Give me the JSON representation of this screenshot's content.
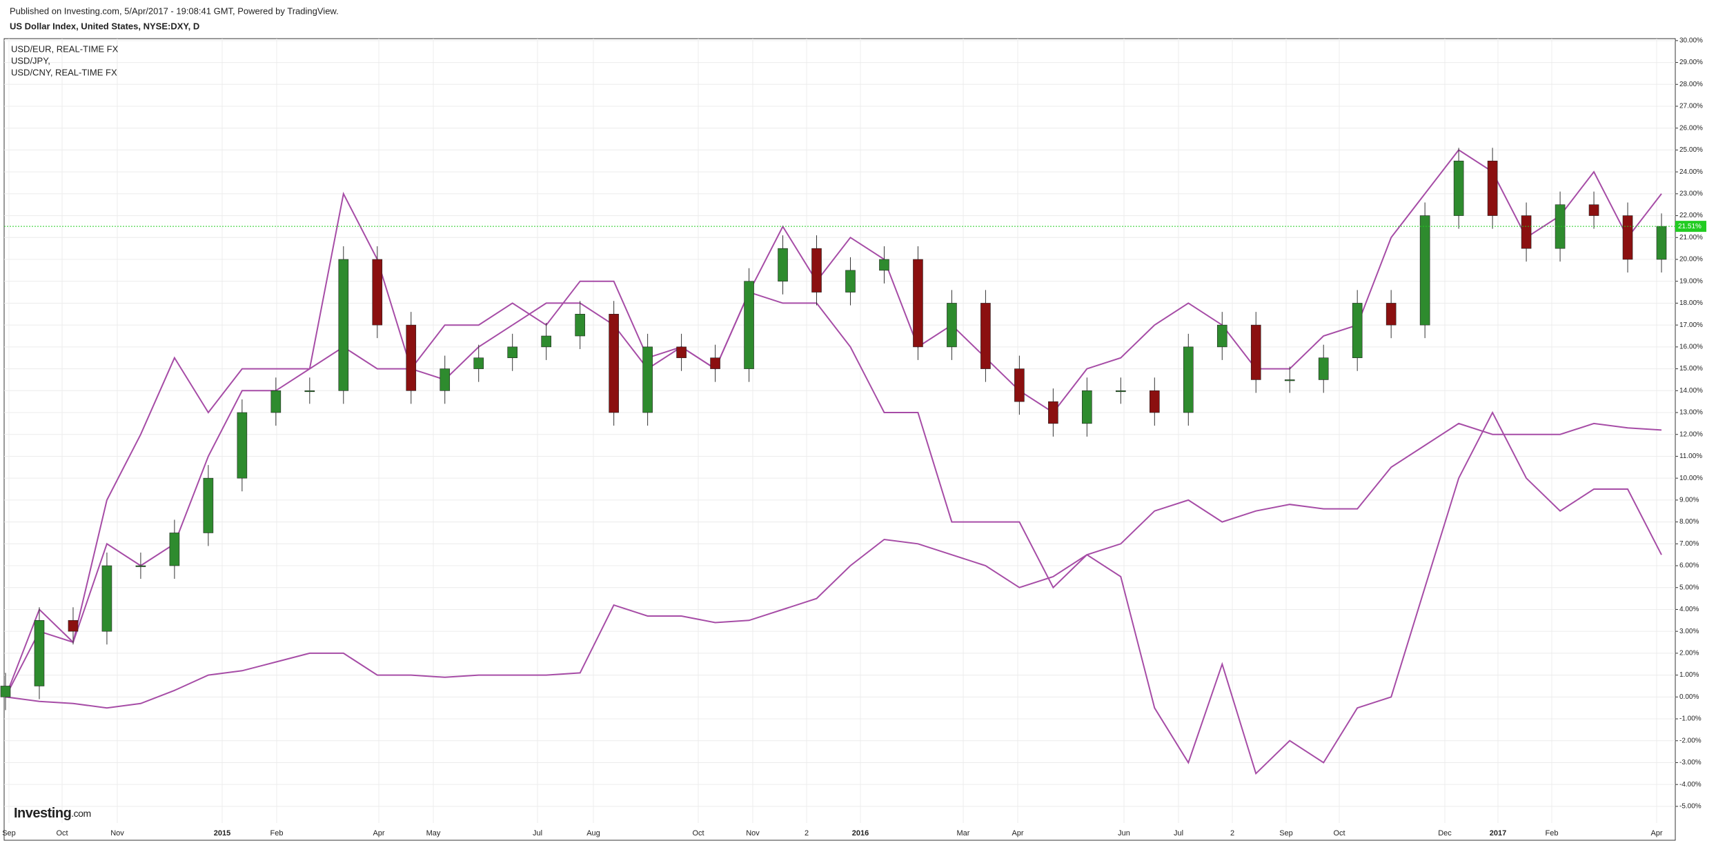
{
  "header": {
    "published": "Published on Investing.com, 5/Apr/2017 - 19:08:41 GMT, Powered by TradingView.",
    "title": "US Dollar Index, United States, NYSE:DXY, D"
  },
  "logo": {
    "name": "Investing",
    "suffix": ".com"
  },
  "chart_data": {
    "type": "candlestick",
    "xtick_labels": [
      "Sep",
      "Oct",
      "Nov",
      "2015",
      "Feb",
      "Apr",
      "May",
      "Jul",
      "Aug",
      "Oct",
      "Nov",
      "2",
      "2016",
      "Mar",
      "Apr",
      "Jun",
      "Jul",
      "2",
      "Sep",
      "Oct",
      "Dec",
      "2017",
      "Feb",
      "Apr"
    ],
    "candles": {
      "up_color": "#2e8b2e",
      "down_color": "#8b1010",
      "open": [
        0,
        0.5,
        3.5,
        3,
        6,
        6,
        7.5,
        10,
        13,
        14,
        14,
        20,
        17,
        14,
        15,
        15.5,
        16,
        16.5,
        17.5,
        13,
        16,
        15.5,
        15,
        19,
        20.5,
        18.5,
        19.5,
        20,
        16,
        18,
        15,
        13.5,
        12.5,
        14,
        14,
        13,
        16,
        17,
        14.5,
        14.5,
        15.5,
        18,
        17,
        22,
        24.5,
        22,
        20.5,
        22.5,
        22,
        20
      ],
      "high": [
        1.1,
        4.1,
        4.1,
        6.6,
        6.6,
        8.1,
        10.6,
        13.6,
        14.6,
        14.6,
        20.6,
        20.6,
        17.6,
        15.6,
        16.1,
        16.6,
        17.1,
        18.1,
        18.1,
        16.6,
        16.6,
        16.1,
        19.6,
        21.1,
        21.1,
        20.1,
        20.6,
        20.6,
        18.6,
        18.6,
        15.6,
        14.1,
        14.6,
        14.6,
        14.6,
        16.6,
        17.6,
        17.6,
        15.1,
        16.1,
        18.6,
        18.6,
        22.6,
        25.1,
        25.1,
        22.6,
        23.1,
        23.1,
        22.6,
        22.1
      ],
      "low": [
        -0.6,
        -0.1,
        2.4,
        2.4,
        5.4,
        5.4,
        6.9,
        9.4,
        12.4,
        13.4,
        13.4,
        16.4,
        13.4,
        13.4,
        14.4,
        14.9,
        15.4,
        15.9,
        12.4,
        12.4,
        14.9,
        14.4,
        14.4,
        18.4,
        17.9,
        17.9,
        18.9,
        15.4,
        15.4,
        14.4,
        12.9,
        11.9,
        11.9,
        13.4,
        12.4,
        12.4,
        15.4,
        13.9,
        13.9,
        13.9,
        14.9,
        16.4,
        16.4,
        21.4,
        21.4,
        19.9,
        19.9,
        21.4,
        19.4,
        19.4
      ],
      "close": [
        0.5,
        3.5,
        3,
        6,
        6,
        7.5,
        10,
        13,
        14,
        14,
        20,
        17,
        14,
        15,
        15.5,
        16,
        16.5,
        17.5,
        13,
        16,
        15.5,
        15,
        19,
        20.5,
        18.5,
        19.5,
        20,
        16,
        18,
        15,
        13.5,
        12.5,
        14,
        14,
        13,
        16,
        17,
        14.5,
        14.5,
        15.5,
        18,
        17,
        22,
        24.5,
        22,
        20.5,
        22.5,
        22,
        20,
        21.51
      ]
    },
    "last_value": {
      "value": 21.51,
      "label": "21.51%",
      "color": "#22cc22"
    },
    "series": [
      {
        "name": "USD/EUR, REAL-TIME FX",
        "color": "#a64ca6",
        "values": [
          0,
          4,
          2.5,
          7,
          6,
          7,
          11,
          14,
          14,
          15,
          23,
          20,
          15,
          17,
          17,
          18,
          17,
          19,
          19,
          15.5,
          16,
          15,
          18.5,
          21.5,
          19,
          21,
          20,
          16,
          17,
          15.5,
          14,
          13,
          15,
          15.5,
          17,
          18,
          17,
          15,
          15,
          16.5,
          17,
          21,
          23,
          25,
          24,
          21,
          22,
          24,
          21,
          23
        ]
      },
      {
        "name": "USD/JPY,",
        "color": "#a64ca6",
        "values": [
          0,
          3,
          2.5,
          9,
          12,
          15.5,
          13,
          15,
          15,
          15,
          16,
          15,
          15,
          14.5,
          16,
          17,
          18,
          18,
          17,
          15,
          16,
          15,
          18.5,
          18,
          18,
          16,
          13,
          13,
          8,
          8,
          8,
          5,
          6.5,
          5.5,
          -0.5,
          -3,
          1.5,
          -3.5,
          -2,
          -3,
          -0.5,
          0,
          5,
          10,
          13,
          10,
          8.5,
          9.5,
          9.5,
          6.5
        ]
      },
      {
        "name": "USD/CNY, REAL-TIME FX",
        "color": "#a64ca6",
        "values": [
          0,
          -0.2,
          -0.3,
          -0.5,
          -0.3,
          0.3,
          1,
          1.2,
          1.6,
          2,
          2,
          1,
          1,
          0.9,
          1,
          1,
          1,
          1.1,
          4.2,
          3.7,
          3.7,
          3.4,
          3.5,
          4,
          4.5,
          6,
          7.2,
          7,
          6.5,
          6,
          5,
          5.5,
          6.5,
          7,
          8.5,
          9,
          8,
          8.5,
          8.8,
          8.6,
          8.6,
          10.5,
          11.5,
          12.5,
          12,
          12,
          12,
          12.5,
          12.3,
          12.2
        ]
      }
    ],
    "ylim": [
      -5.76,
      30.09
    ],
    "yticks": [
      {
        "value": 30,
        "label": "30.00%"
      },
      {
        "value": 29,
        "label": "29.00%"
      },
      {
        "value": 28,
        "label": "28.00%"
      },
      {
        "value": 27,
        "label": "27.00%"
      },
      {
        "value": 26,
        "label": "26.00%"
      },
      {
        "value": 25,
        "label": "25.00%"
      },
      {
        "value": 24,
        "label": "24.00%"
      },
      {
        "value": 23,
        "label": "23.00%"
      },
      {
        "value": 22,
        "label": "22.00%"
      },
      {
        "value": 21,
        "label": "21.00%"
      },
      {
        "value": 20,
        "label": "20.00%"
      },
      {
        "value": 19,
        "label": "19.00%"
      },
      {
        "value": 18,
        "label": "18.00%"
      },
      {
        "value": 17,
        "label": "17.00%"
      },
      {
        "value": 16,
        "label": "16.00%"
      },
      {
        "value": 15,
        "label": "15.00%"
      },
      {
        "value": 14,
        "label": "14.00%"
      },
      {
        "value": 13,
        "label": "13.00%"
      },
      {
        "value": 12,
        "label": "12.00%"
      },
      {
        "value": 11,
        "label": "11.00%"
      },
      {
        "value": 10,
        "label": "10.00%"
      },
      {
        "value": 9,
        "label": "9.00%"
      },
      {
        "value": 8,
        "label": "8.00%"
      },
      {
        "value": 7,
        "label": "7.00%"
      },
      {
        "value": 6,
        "label": "6.00%"
      },
      {
        "value": 5,
        "label": "5.00%"
      },
      {
        "value": 4,
        "label": "4.00%"
      },
      {
        "value": 3,
        "label": "3.00%"
      },
      {
        "value": 2,
        "label": "2.00%"
      },
      {
        "value": 1,
        "label": "1.00%"
      },
      {
        "value": 0,
        "label": "0.00%"
      },
      {
        "value": -1,
        "label": "-1.00%"
      },
      {
        "value": -2,
        "label": "-2.00%"
      },
      {
        "value": -3,
        "label": "-3.00%"
      },
      {
        "value": -4,
        "label": "-4.00%"
      },
      {
        "value": -5,
        "label": "-5.00%"
      }
    ],
    "grid": true
  }
}
